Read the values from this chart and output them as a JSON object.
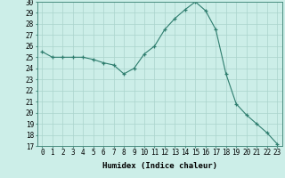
{
  "xlabel": "Humidex (Indice chaleur)",
  "x_values": [
    0,
    1,
    2,
    3,
    4,
    5,
    6,
    7,
    8,
    9,
    10,
    11,
    12,
    13,
    14,
    15,
    16,
    17,
    18,
    19,
    20,
    21,
    22,
    23
  ],
  "y_values": [
    25.5,
    25.0,
    25.0,
    25.0,
    25.0,
    24.8,
    24.5,
    24.3,
    23.5,
    24.0,
    25.3,
    26.0,
    27.5,
    28.5,
    29.3,
    30.0,
    29.2,
    27.5,
    23.5,
    20.8,
    19.8,
    19.0,
    18.2,
    17.2
  ],
  "line_color": "#2e7d6e",
  "marker": "+",
  "bg_color": "#cceee8",
  "grid_color": "#aad4cc",
  "ylim": [
    17,
    30
  ],
  "yticks": [
    17,
    18,
    19,
    20,
    21,
    22,
    23,
    24,
    25,
    26,
    27,
    28,
    29,
    30
  ],
  "tick_fontsize": 5.5,
  "label_fontsize": 6.5
}
